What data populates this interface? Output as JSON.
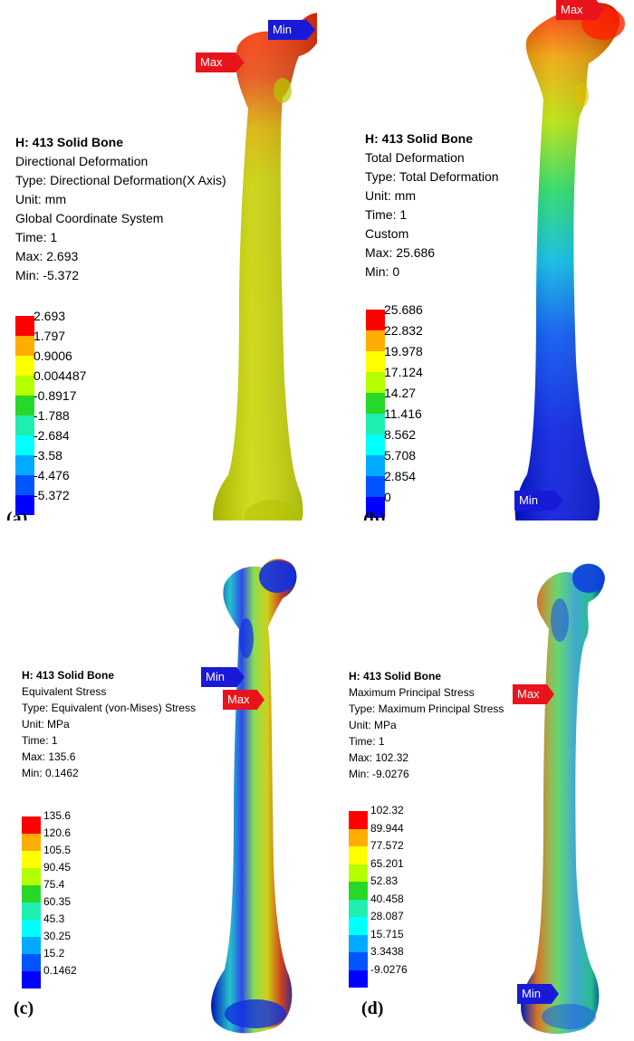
{
  "legend_colors": [
    "#ff0000",
    "#ffad00",
    "#ffff00",
    "#b4ff00",
    "#28d828",
    "#1eefb0",
    "#00ffff",
    "#00aaff",
    "#0055ff",
    "#0000ff"
  ],
  "panels": [
    {
      "label": "(a)",
      "info": [
        "H: 413 Solid Bone",
        "Directional Deformation",
        "Type: Directional Deformation(X Axis)",
        "Unit: mm",
        "Global Coordinate System",
        "Time: 1",
        "Max: 2.693",
        "Min: -5.372"
      ],
      "legend_values": [
        "2.693",
        "1.797",
        "0.9006",
        "0.004487",
        "-0.8917",
        "-1.788",
        "-2.684",
        "-3.58",
        "-4.476",
        "-5.372"
      ],
      "max_flag": "Max",
      "min_flag": "Min"
    },
    {
      "label": "(b)",
      "info": [
        "H: 413 Solid Bone",
        "Total Deformation",
        "Type: Total Deformation",
        "Unit: mm",
        "Time: 1",
        "Custom",
        "Max: 25.686",
        "Min: 0"
      ],
      "legend_values": [
        "25.686",
        "22.832",
        "19.978",
        "17.124",
        "14.27",
        "11.416",
        "8.562",
        "5.708",
        "2.854",
        "0"
      ],
      "max_flag": "Max",
      "min_flag": "Min"
    },
    {
      "label": "(c)",
      "info": [
        "H: 413 Solid Bone",
        "Equivalent Stress",
        "Type: Equivalent (von-Mises) Stress",
        "Unit: MPa",
        "Time: 1",
        "Max: 135.6",
        "Min: 0.1462"
      ],
      "legend_values": [
        "135.6",
        "120.6",
        "105.5",
        "90.45",
        "75.4",
        "60.35",
        "45.3",
        "30.25",
        "15.2",
        "0.1462"
      ],
      "max_flag": "Max",
      "min_flag": "Min"
    },
    {
      "label": "(d)",
      "info": [
        "H: 413 Solid Bone",
        "Maximum Principal Stress",
        "Type: Maximum Principal Stress",
        "Unit: MPa",
        "Time: 1",
        "Max: 102.32",
        "Min: -9.0276"
      ],
      "legend_values": [
        "102.32",
        "89.944",
        "77.572",
        "65.201",
        "52.83",
        "40.458",
        "28.087",
        "15.715",
        "3.3438",
        "-9.0276"
      ],
      "max_flag": "Max",
      "min_flag": "Min"
    }
  ]
}
